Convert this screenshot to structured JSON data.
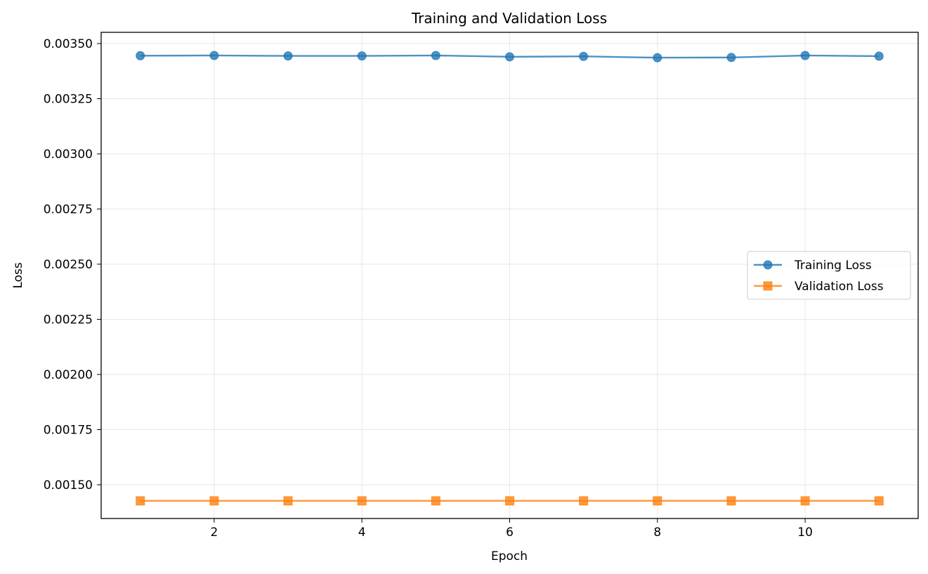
{
  "chart_data": {
    "type": "line",
    "title": "Training and Validation Loss",
    "xlabel": "Epoch",
    "ylabel": "Loss",
    "x": [
      1,
      2,
      3,
      4,
      5,
      6,
      7,
      8,
      9,
      10,
      11
    ],
    "xlim": [
      0.47,
      11.53
    ],
    "ylim": [
      0.001347,
      0.003551
    ],
    "xticks": [
      2,
      4,
      6,
      8,
      10
    ],
    "xtick_labels": [
      "2",
      "4",
      "6",
      "8",
      "10"
    ],
    "yticks": [
      0.0015,
      0.00175,
      0.002,
      0.00225,
      0.0025,
      0.00275,
      0.003,
      0.00325,
      0.0035
    ],
    "ytick_labels": [
      "0.00150",
      "0.00175",
      "0.00200",
      "0.00225",
      "0.00250",
      "0.00275",
      "0.00300",
      "0.00325",
      "0.00350"
    ],
    "grid": true,
    "legend_position": "center-right",
    "series": [
      {
        "name": "Training Loss",
        "marker": "circle",
        "color": "#1f77b4",
        "values": [
          0.003445,
          0.003446,
          0.003444,
          0.003444,
          0.003446,
          0.00344,
          0.003442,
          0.003436,
          0.003437,
          0.003446,
          0.003443
        ]
      },
      {
        "name": "Validation Loss",
        "marker": "square",
        "color": "#ff7f0e",
        "values": [
          0.001427,
          0.001427,
          0.001427,
          0.001427,
          0.001427,
          0.001427,
          0.001427,
          0.001427,
          0.001427,
          0.001427,
          0.001427
        ]
      }
    ]
  }
}
